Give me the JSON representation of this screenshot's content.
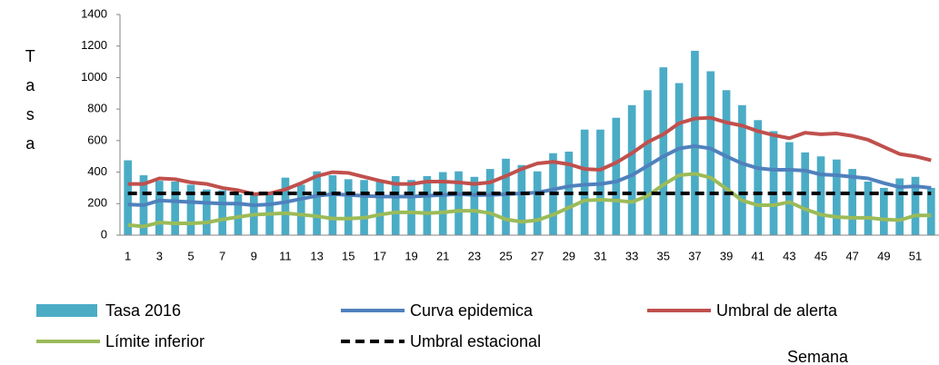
{
  "chart_data": {
    "type": "bar_line",
    "y_label": "Tasa",
    "x_label": "Semana",
    "categories": [
      "1",
      null,
      "3",
      null,
      "5",
      null,
      "7",
      null,
      "9",
      null,
      "11",
      null,
      "13",
      null,
      "15",
      null,
      "17",
      null,
      "19",
      null,
      "21",
      null,
      "23",
      null,
      "25",
      null,
      "27",
      null,
      "29",
      null,
      "31",
      null,
      "33",
      null,
      "35",
      null,
      "37",
      null,
      "39",
      null,
      "41",
      null,
      "43",
      null,
      "45",
      null,
      "47",
      null,
      "49",
      null,
      "51",
      null
    ],
    "ylim": [
      0,
      1400
    ],
    "yticks": [
      0,
      200,
      400,
      600,
      800,
      1000,
      1200,
      1400
    ],
    "grid": false,
    "legend": "bottom",
    "series": [
      {
        "name": "Tasa 2016",
        "type": "bar",
        "color": "#4bacc6",
        "values": [
          475,
          380,
          345,
          340,
          320,
          290,
          285,
          260,
          265,
          270,
          365,
          320,
          405,
          380,
          355,
          350,
          340,
          375,
          350,
          375,
          400,
          405,
          370,
          420,
          485,
          445,
          405,
          520,
          530,
          670,
          670,
          745,
          825,
          920,
          1065,
          965,
          1170,
          1040,
          920,
          825,
          730,
          660,
          590,
          525,
          500,
          480,
          420,
          340,
          300,
          360,
          370,
          300
        ]
      },
      {
        "name": "Curva epidemica",
        "type": "line",
        "color": "#4f81bd",
        "line_style": "solid",
        "values": [
          195,
          190,
          220,
          215,
          210,
          205,
          200,
          200,
          190,
          195,
          210,
          230,
          250,
          260,
          255,
          250,
          245,
          245,
          245,
          250,
          255,
          260,
          255,
          255,
          260,
          265,
          270,
          290,
          310,
          320,
          325,
          340,
          380,
          440,
          500,
          550,
          565,
          550,
          500,
          455,
          425,
          415,
          415,
          410,
          385,
          380,
          370,
          360,
          330,
          305,
          310,
          300
        ]
      },
      {
        "name": "Umbral de alerta",
        "type": "line",
        "color": "#c0504d",
        "line_style": "solid",
        "values": [
          325,
          325,
          360,
          355,
          335,
          325,
          300,
          285,
          260,
          265,
          290,
          330,
          375,
          400,
          395,
          370,
          345,
          325,
          325,
          340,
          340,
          335,
          325,
          335,
          375,
          420,
          455,
          465,
          450,
          420,
          415,
          460,
          520,
          590,
          640,
          710,
          740,
          745,
          715,
          695,
          660,
          635,
          615,
          650,
          640,
          645,
          630,
          605,
          560,
          515,
          500,
          475
        ]
      },
      {
        "name": "Límite inferior",
        "type": "line",
        "color": "#9bbb59",
        "line_style": "solid",
        "values": [
          65,
          55,
          80,
          75,
          75,
          80,
          100,
          115,
          130,
          135,
          140,
          130,
          120,
          105,
          105,
          110,
          130,
          145,
          145,
          140,
          145,
          155,
          155,
          140,
          100,
          85,
          95,
          130,
          175,
          220,
          225,
          220,
          210,
          250,
          320,
          380,
          390,
          365,
          295,
          220,
          190,
          190,
          210,
          165,
          130,
          115,
          110,
          110,
          100,
          95,
          125,
          125
        ]
      },
      {
        "name": "Umbral estacional",
        "type": "line",
        "color": "#000000",
        "line_style": "dashed",
        "values": [
          265,
          265,
          265,
          265,
          265,
          265,
          265,
          265,
          265,
          265,
          265,
          265,
          265,
          265,
          265,
          265,
          265,
          265,
          265,
          265,
          265,
          265,
          265,
          265,
          265,
          265,
          265,
          265,
          265,
          265,
          265,
          265,
          265,
          265,
          265,
          265,
          265,
          265,
          265,
          265,
          265,
          265,
          265,
          265,
          265,
          265,
          265,
          265,
          265,
          265,
          265,
          265
        ]
      }
    ]
  }
}
